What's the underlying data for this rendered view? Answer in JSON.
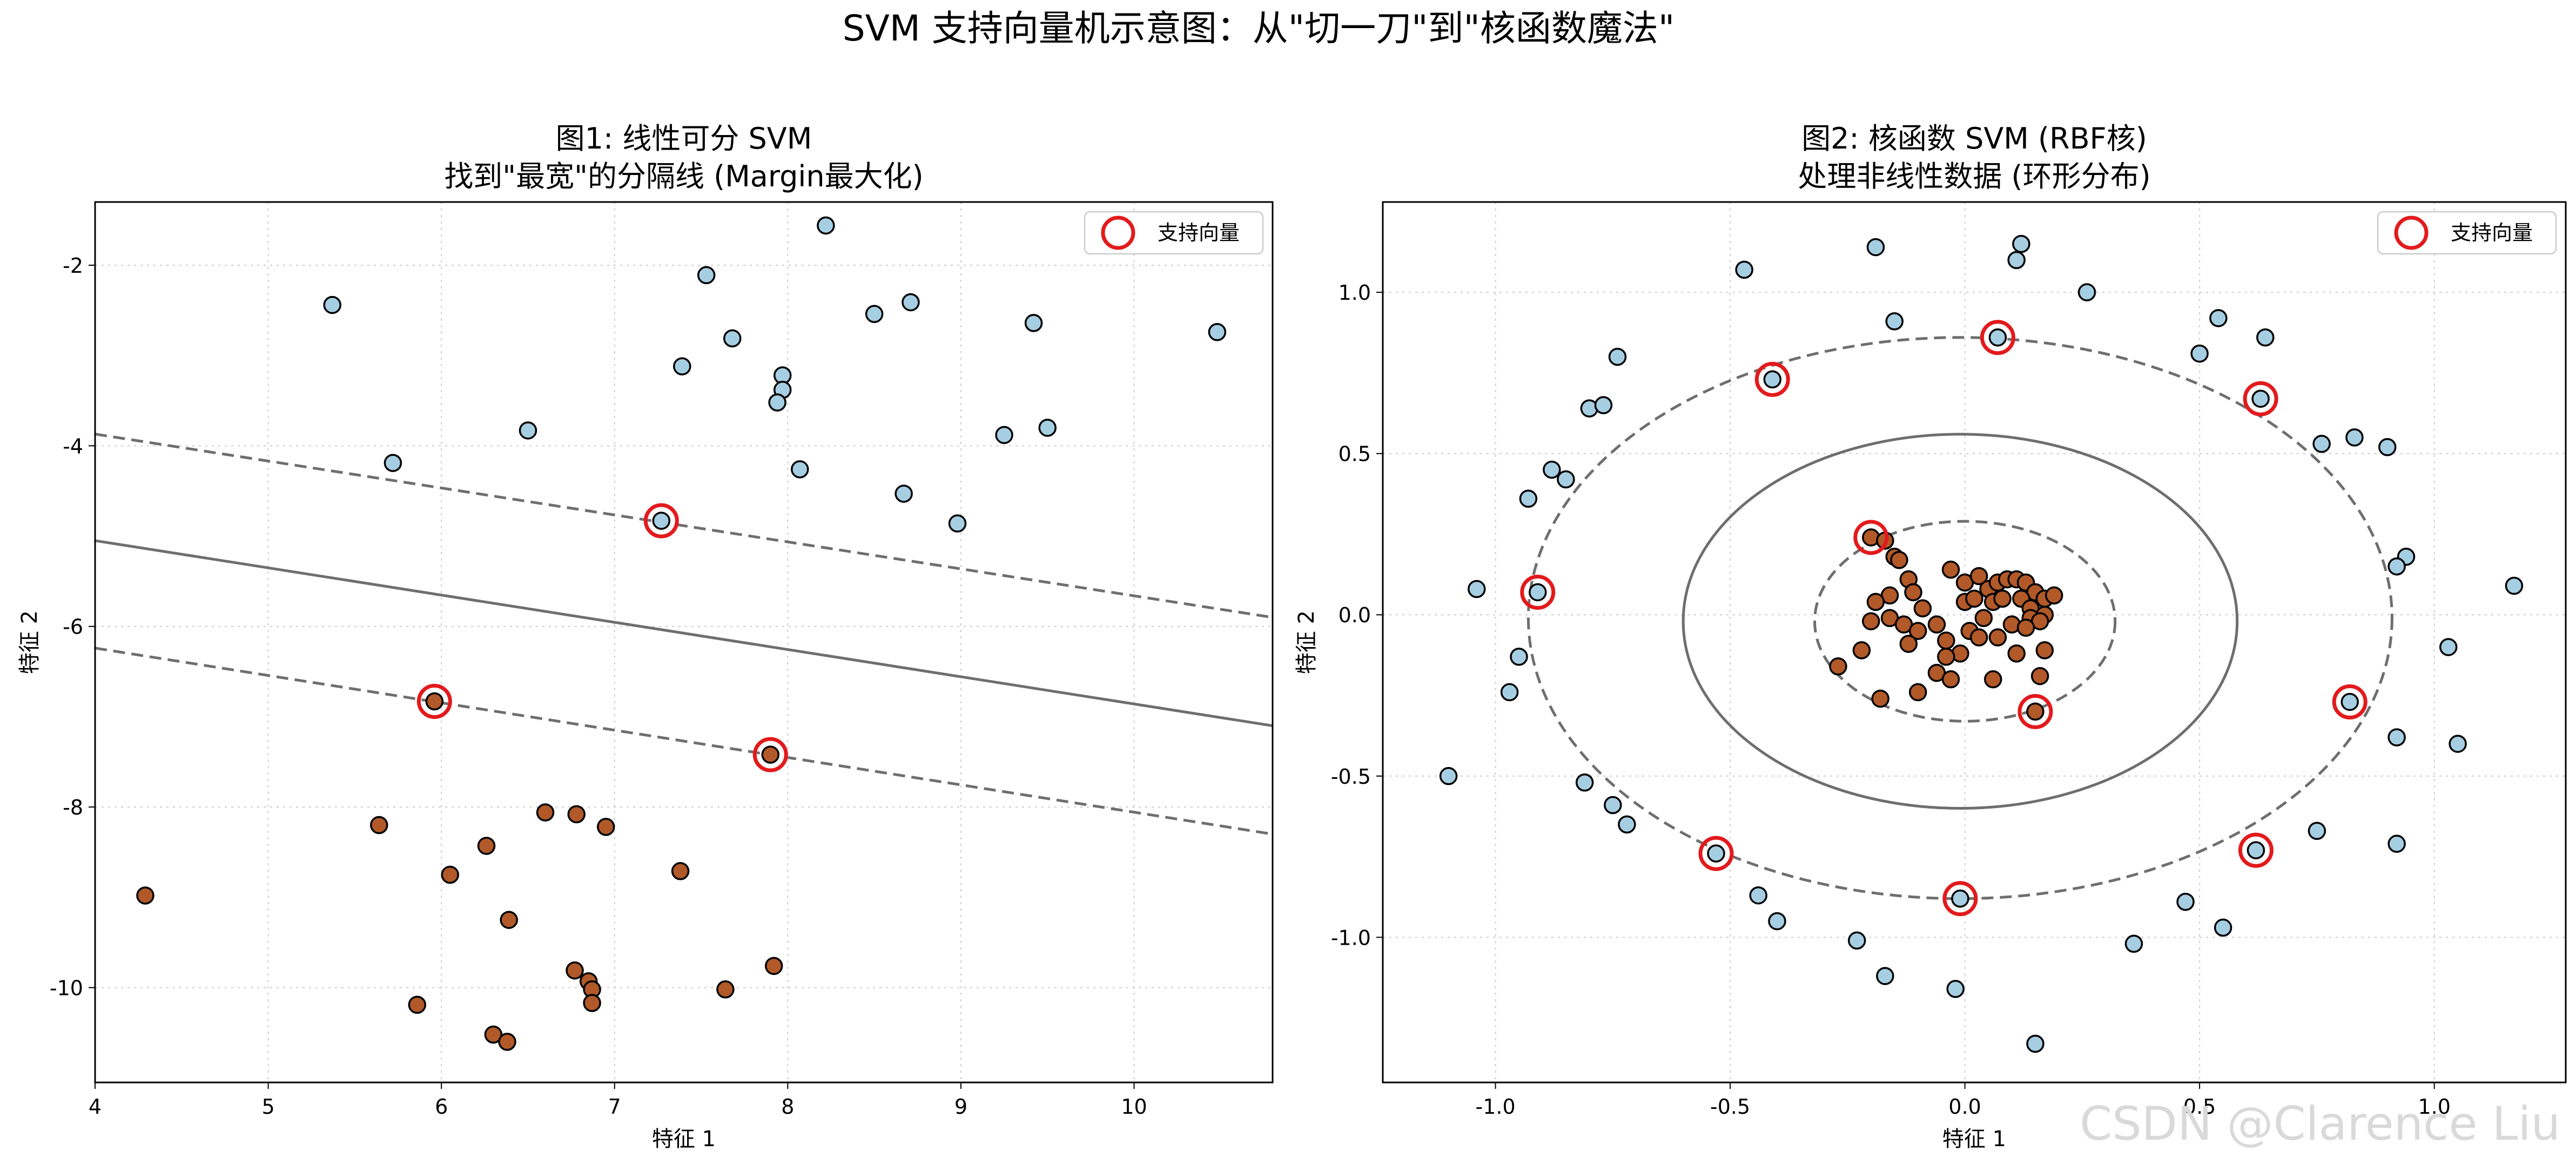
{
  "suptitle": "SVM 支持向量机示意图：从\"切一刀\"到\"核函数魔法\"",
  "watermark": "CSDN @Clarence Liu",
  "colors": {
    "class_a": "#a6cee3",
    "class_b": "#b15928",
    "support_ring": "#e31a1c",
    "boundary": "#6e6e6e",
    "grid": "#cccccc"
  },
  "chart_data": [
    {
      "type": "scatter",
      "title_line1": "图1: 线性可分 SVM",
      "title_line2": "找到\"最宽\"的分隔线 (Margin最大化)",
      "xlabel": "特征 1",
      "ylabel": "特征 2",
      "xlim": [
        4.0,
        10.8
      ],
      "ylim": [
        -11.05,
        -1.3
      ],
      "xticks": [
        4,
        5,
        6,
        7,
        8,
        9,
        10
      ],
      "yticks": [
        -2,
        -4,
        -6,
        -8,
        -10
      ],
      "grid": true,
      "legend": {
        "label": "支持向量",
        "placement": "top-right"
      },
      "series": [
        {
          "name": "class_a",
          "points": [
            [
              5.37,
              -2.44
            ],
            [
              8.22,
              -1.56
            ],
            [
              7.53,
              -2.11
            ],
            [
              8.5,
              -2.54
            ],
            [
              8.71,
              -2.41
            ],
            [
              9.42,
              -2.64
            ],
            [
              10.48,
              -2.74
            ],
            [
              7.68,
              -2.81
            ],
            [
              7.97,
              -3.22
            ],
            [
              7.39,
              -3.12
            ],
            [
              7.97,
              -3.38
            ],
            [
              7.94,
              -3.52
            ],
            [
              6.5,
              -3.83
            ],
            [
              9.25,
              -3.88
            ],
            [
              9.5,
              -3.8
            ],
            [
              5.72,
              -4.19
            ],
            [
              8.07,
              -4.26
            ],
            [
              8.67,
              -4.53
            ],
            [
              8.98,
              -4.86
            ],
            [
              7.27,
              -4.83
            ]
          ]
        },
        {
          "name": "class_b",
          "points": [
            [
              5.96,
              -6.83
            ],
            [
              7.9,
              -7.42
            ],
            [
              6.6,
              -8.06
            ],
            [
              6.78,
              -8.08
            ],
            [
              6.95,
              -8.22
            ],
            [
              5.64,
              -8.2
            ],
            [
              6.26,
              -8.43
            ],
            [
              6.05,
              -8.75
            ],
            [
              7.38,
              -8.71
            ],
            [
              4.29,
              -8.98
            ],
            [
              6.39,
              -9.25
            ],
            [
              6.77,
              -9.81
            ],
            [
              7.92,
              -9.76
            ],
            [
              6.85,
              -9.93
            ],
            [
              6.87,
              -10.02
            ],
            [
              7.64,
              -10.02
            ],
            [
              6.87,
              -10.17
            ],
            [
              5.86,
              -10.19
            ],
            [
              6.3,
              -10.52
            ],
            [
              6.38,
              -10.6
            ]
          ]
        }
      ],
      "support_vectors": [
        [
          7.27,
          -4.83
        ],
        [
          5.96,
          -6.83
        ],
        [
          7.9,
          -7.42
        ]
      ],
      "decision_boundary": {
        "from": [
          4.0,
          -5.05
        ],
        "to": [
          10.8,
          -7.1
        ]
      },
      "margin_upper": {
        "from": [
          4.0,
          -3.87
        ],
        "to": [
          10.8,
          -5.9
        ]
      },
      "margin_lower": {
        "from": [
          4.0,
          -6.24
        ],
        "to": [
          10.8,
          -8.3
        ]
      }
    },
    {
      "type": "scatter",
      "title_line1": "图2: 核函数 SVM (RBF核)",
      "title_line2": "处理非线性数据 (环形分布)",
      "xlabel": "特征 1",
      "ylabel": "特征 2",
      "xlim": [
        -1.24,
        1.28
      ],
      "ylim": [
        -1.45,
        1.28
      ],
      "xticks": [
        -1.0,
        -0.5,
        0.0,
        0.5,
        1.0
      ],
      "yticks": [
        1.0,
        0.5,
        0.0,
        -0.5,
        -1.0
      ],
      "grid": true,
      "legend": {
        "label": "支持向量",
        "placement": "top-right"
      },
      "series": [
        {
          "name": "class_a_outer_ring",
          "points": [
            [
              -0.47,
              1.07
            ],
            [
              -0.19,
              1.14
            ],
            [
              0.12,
              1.15
            ],
            [
              0.11,
              1.1
            ],
            [
              0.26,
              1.0
            ],
            [
              -0.15,
              0.91
            ],
            [
              0.54,
              0.92
            ],
            [
              0.07,
              0.86
            ],
            [
              0.5,
              0.81
            ],
            [
              0.64,
              0.86
            ],
            [
              -0.74,
              0.8
            ],
            [
              -0.41,
              0.73
            ],
            [
              -0.8,
              0.64
            ],
            [
              -0.77,
              0.65
            ],
            [
              0.63,
              0.67
            ],
            [
              0.76,
              0.53
            ],
            [
              0.83,
              0.55
            ],
            [
              0.9,
              0.52
            ],
            [
              -0.88,
              0.45
            ],
            [
              -0.85,
              0.42
            ],
            [
              -0.93,
              0.36
            ],
            [
              0.94,
              0.18
            ],
            [
              0.92,
              0.15
            ],
            [
              -1.04,
              0.08
            ],
            [
              -0.91,
              0.07
            ],
            [
              1.17,
              0.09
            ],
            [
              -0.95,
              -0.13
            ],
            [
              1.03,
              -0.1
            ],
            [
              -0.97,
              -0.24
            ],
            [
              0.82,
              -0.27
            ],
            [
              0.92,
              -0.38
            ],
            [
              1.05,
              -0.4
            ],
            [
              -1.1,
              -0.5
            ],
            [
              -0.81,
              -0.52
            ],
            [
              -0.75,
              -0.59
            ],
            [
              -0.72,
              -0.65
            ],
            [
              0.75,
              -0.67
            ],
            [
              0.92,
              -0.71
            ],
            [
              -0.53,
              -0.74
            ],
            [
              0.62,
              -0.73
            ],
            [
              -0.44,
              -0.87
            ],
            [
              -0.01,
              -0.88
            ],
            [
              0.47,
              -0.89
            ],
            [
              -0.4,
              -0.95
            ],
            [
              0.55,
              -0.97
            ],
            [
              -0.23,
              -1.01
            ],
            [
              0.36,
              -1.02
            ],
            [
              -0.17,
              -1.12
            ],
            [
              -0.02,
              -1.16
            ],
            [
              0.15,
              -1.33
            ]
          ]
        },
        {
          "name": "class_b_inner_cluster",
          "points": [
            [
              -0.2,
              0.24
            ],
            [
              -0.17,
              0.23
            ],
            [
              -0.15,
              0.18
            ],
            [
              -0.14,
              0.17
            ],
            [
              -0.12,
              0.11
            ],
            [
              -0.16,
              0.06
            ],
            [
              -0.11,
              0.07
            ],
            [
              -0.19,
              0.04
            ],
            [
              -0.09,
              0.02
            ],
            [
              -0.2,
              -0.02
            ],
            [
              -0.16,
              -0.01
            ],
            [
              -0.13,
              -0.03
            ],
            [
              -0.1,
              -0.05
            ],
            [
              -0.06,
              -0.03
            ],
            [
              -0.12,
              -0.09
            ],
            [
              -0.04,
              -0.08
            ],
            [
              -0.01,
              -0.12
            ],
            [
              -0.04,
              -0.13
            ],
            [
              -0.27,
              -0.16
            ],
            [
              -0.22,
              -0.11
            ],
            [
              -0.06,
              -0.18
            ],
            [
              -0.03,
              -0.2
            ],
            [
              -0.1,
              -0.24
            ],
            [
              -0.18,
              -0.26
            ],
            [
              -0.03,
              0.14
            ],
            [
              0.0,
              0.1
            ],
            [
              0.03,
              0.12
            ],
            [
              0.05,
              0.08
            ],
            [
              0.07,
              0.1
            ],
            [
              0.09,
              0.11
            ],
            [
              0.11,
              0.11
            ],
            [
              0.13,
              0.1
            ],
            [
              0.15,
              0.07
            ],
            [
              0.17,
              0.05
            ],
            [
              0.19,
              0.06
            ],
            [
              0.0,
              0.04
            ],
            [
              0.02,
              0.05
            ],
            [
              0.06,
              0.04
            ],
            [
              0.08,
              0.05
            ],
            [
              0.12,
              0.05
            ],
            [
              0.14,
              0.02
            ],
            [
              0.17,
              0.0
            ],
            [
              0.04,
              -0.01
            ],
            [
              0.14,
              -0.01
            ],
            [
              0.16,
              -0.02
            ],
            [
              0.1,
              -0.03
            ],
            [
              0.13,
              -0.04
            ],
            [
              0.01,
              -0.05
            ],
            [
              0.03,
              -0.07
            ],
            [
              0.07,
              -0.07
            ],
            [
              0.17,
              -0.11
            ],
            [
              0.11,
              -0.12
            ],
            [
              0.16,
              -0.19
            ],
            [
              0.06,
              -0.2
            ],
            [
              0.15,
              -0.3
            ]
          ]
        }
      ],
      "support_vectors": [
        [
          0.07,
          0.86
        ],
        [
          -0.41,
          0.73
        ],
        [
          0.63,
          0.67
        ],
        [
          -0.91,
          0.07
        ],
        [
          -0.2,
          0.24
        ],
        [
          0.82,
          -0.27
        ],
        [
          0.15,
          -0.3
        ],
        [
          -0.53,
          -0.74
        ],
        [
          0.62,
          -0.73
        ],
        [
          -0.01,
          -0.88
        ]
      ],
      "decision_boundary": {
        "type": "ellipse",
        "center": [
          -0.01,
          -0.02
        ],
        "rx": 0.59,
        "ry": 0.58
      },
      "margin_outer": {
        "type": "ellipse",
        "center": [
          -0.01,
          -0.01
        ],
        "rx": 0.92,
        "ry": 0.87
      },
      "margin_inner": {
        "type": "ellipse",
        "center": [
          0.0,
          -0.02
        ],
        "rx": 0.32,
        "ry": 0.31
      }
    }
  ]
}
